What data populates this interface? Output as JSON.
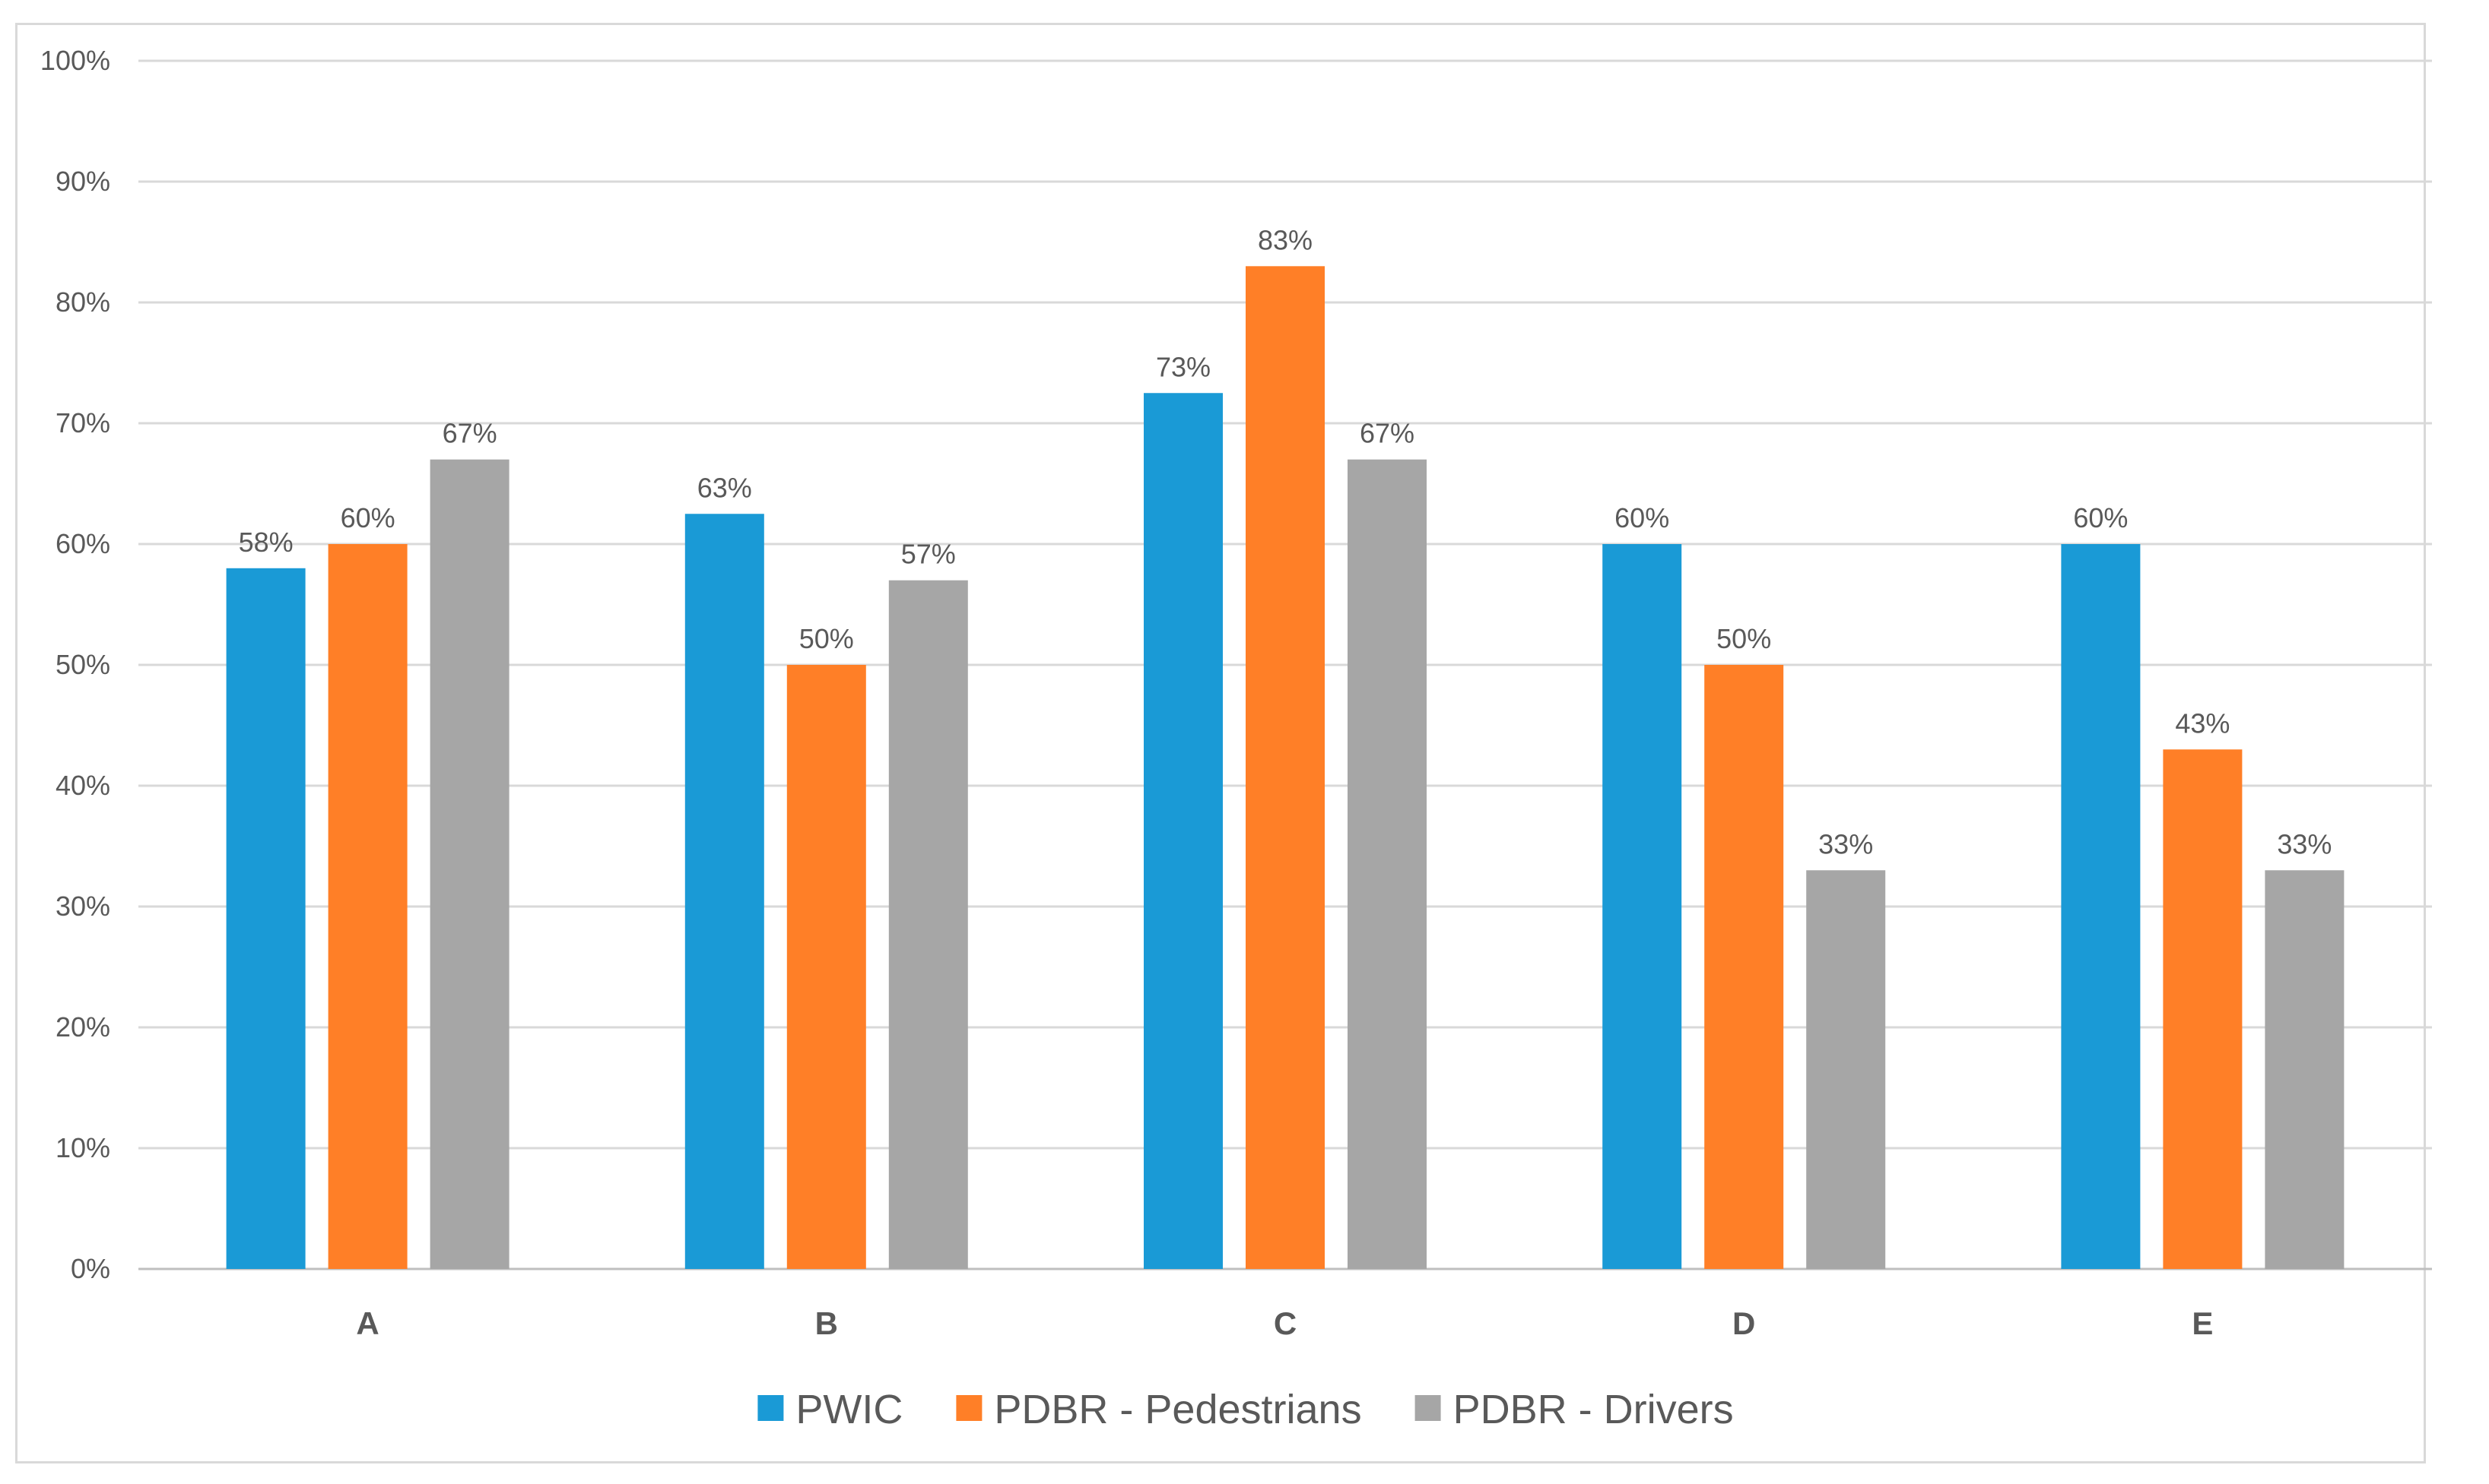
{
  "chart_data": {
    "type": "bar",
    "categories": [
      "A",
      "B",
      "C",
      "D",
      "E"
    ],
    "series": [
      {
        "name": "PWIC",
        "color": "#1a9ad6",
        "values": [
          58,
          62.5,
          72.5,
          60,
          60
        ],
        "labels": [
          "58%",
          "63%",
          "73%",
          "60%",
          "60%"
        ]
      },
      {
        "name": "PDBR - Pedestrians",
        "color": "#ff7f27",
        "values": [
          60,
          50,
          83,
          50,
          43
        ],
        "labels": [
          "60%",
          "50%",
          "83%",
          "50%",
          "43%"
        ]
      },
      {
        "name": "PDBR - Drivers",
        "color": "#a6a6a6",
        "values": [
          67,
          57,
          67,
          33,
          33
        ],
        "labels": [
          "67%",
          "57%",
          "67%",
          "33%",
          "33%"
        ]
      }
    ],
    "yticks": [
      0,
      10,
      20,
      30,
      40,
      50,
      60,
      70,
      80,
      90,
      100
    ],
    "ytick_labels": [
      "0%",
      "10%",
      "20%",
      "30%",
      "40%",
      "50%",
      "60%",
      "70%",
      "80%",
      "90%",
      "100%"
    ],
    "ylim": [
      0,
      100
    ],
    "grid": true,
    "legend_position": "bottom",
    "title": "",
    "xlabel": "",
    "ylabel": ""
  }
}
